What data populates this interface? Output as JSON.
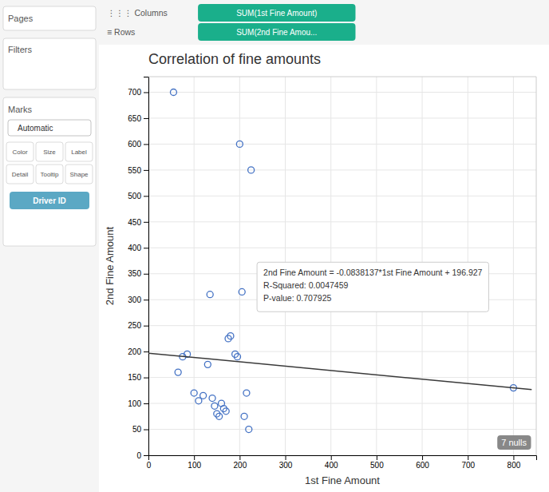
{
  "chart_data": {
    "type": "scatter",
    "title": "Correlation of fine amounts",
    "x_label": "1st Fine Amount",
    "y_label": "2nd Fine Amount",
    "series": [
      {
        "type": "scatter",
        "color": "#4472C4",
        "marker": "circle",
        "x": [
          55,
          65,
          75,
          85,
          100,
          110,
          120,
          130,
          135,
          140,
          145,
          150,
          155,
          160,
          165,
          170,
          175,
          180,
          190,
          195,
          200,
          205,
          210,
          215,
          220,
          225,
          800
        ],
        "values": [
          700,
          160,
          190,
          195,
          120,
          105,
          115,
          175,
          310,
          110,
          95,
          80,
          75,
          100,
          90,
          85,
          225,
          230,
          195,
          190,
          600,
          315,
          75,
          120,
          50,
          550,
          130
        ]
      },
      {
        "type": "line",
        "color": "#3a3a3a",
        "line_style": "solid",
        "x": [
          0,
          840
        ],
        "values": [
          196.927,
          126.523492
        ]
      }
    ],
    "xlim": [
      0,
      850
    ],
    "ylim": [
      0,
      730
    ],
    "xticks": [
      0,
      100,
      200,
      300,
      400,
      500,
      600,
      700,
      800
    ],
    "yticks": [
      0,
      50,
      100,
      150,
      200,
      250,
      300,
      350,
      400,
      450,
      500,
      550,
      600,
      650,
      700
    ],
    "grid": true,
    "annotations": {
      "tooltip": [
        "2nd Fine Amount = -0.0838137*1st Fine Amount + 196.927",
        "R-Squared: 0.0047459",
        "P-value: 0.707925"
      ],
      "badge": "7 nulls",
      "sidebar": [
        "Pages",
        "Filters",
        "Marks",
        "Automatic",
        "Color",
        "Size",
        "Label",
        "Detail",
        "Tooltip",
        "Shape",
        "Driver ID"
      ],
      "toolbar": [
        "⋮⋮⋮ Columns",
        "SUM(1st Fine Amount)",
        "≡ Rows",
        "SUM(2nd Fine Amou..."
      ]
    }
  }
}
